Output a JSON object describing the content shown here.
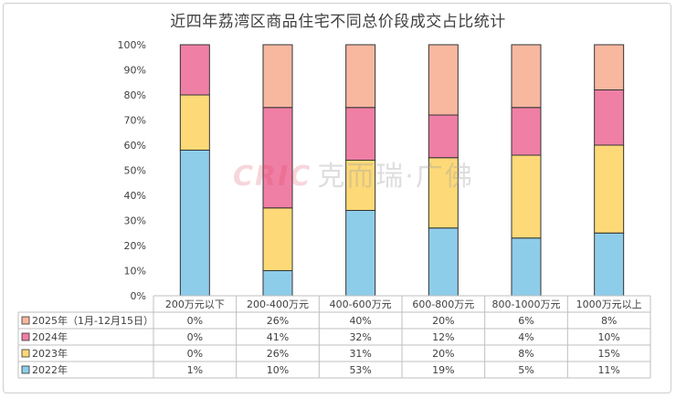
{
  "chart_data": {
    "type": "bar",
    "stacked": true,
    "title": "近四年荔湾区商品住宅不同总价段成交占比统计",
    "categories": [
      "200万元以下",
      "200-400万元",
      "400-600万元",
      "600-800万元",
      "800-1000万元",
      "1000万元以上"
    ],
    "ylim": [
      0,
      100
    ],
    "yticks": [
      "0%",
      "10%",
      "20%",
      "30%",
      "40%",
      "50%",
      "60%",
      "70%",
      "80%",
      "90%",
      "100%"
    ],
    "grid": false,
    "series": [
      {
        "name": "2022年",
        "color": "#8ecdea",
        "values": [
          58,
          10,
          34,
          27,
          23,
          25
        ],
        "table": [
          "1%",
          "10%",
          "53%",
          "19%",
          "5%",
          "11%"
        ]
      },
      {
        "name": "2023年",
        "color": "#fdd978",
        "values": [
          22,
          25,
          20,
          28,
          33,
          35
        ],
        "table": [
          "0%",
          "26%",
          "31%",
          "20%",
          "8%",
          "15%"
        ]
      },
      {
        "name": "2024年",
        "color": "#f07fa5",
        "values": [
          20,
          40,
          21,
          17,
          19,
          22
        ],
        "table": [
          "0%",
          "41%",
          "32%",
          "12%",
          "4%",
          "10%"
        ]
      },
      {
        "name": "2025年（1月-12月15日）",
        "color": "#f8b8a0",
        "values": [
          0,
          25,
          25,
          28,
          25,
          18
        ],
        "table": [
          "0%",
          "26%",
          "40%",
          "20%",
          "6%",
          "8%"
        ]
      }
    ],
    "table_row_order": [
      "2025年（1月-12月15日）",
      "2024年",
      "2023年",
      "2022年"
    ]
  },
  "watermark": {
    "latin": "CRIC",
    "chinese": "克而瑞·广佛"
  }
}
